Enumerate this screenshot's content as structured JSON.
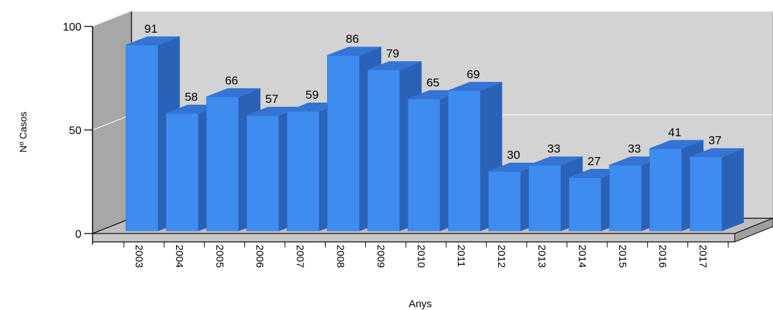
{
  "chart_data": {
    "type": "bar",
    "style": "3d",
    "categories": [
      "2003",
      "2004",
      "2005",
      "2006",
      "2007",
      "2008",
      "2009",
      "2010",
      "2011",
      "2012",
      "2013",
      "2014",
      "2015",
      "2016",
      "2017"
    ],
    "values": [
      91,
      58,
      66,
      57,
      59,
      86,
      79,
      65,
      69,
      30,
      33,
      27,
      33,
      41,
      37
    ],
    "data_labels": [
      "91",
      "58",
      "66",
      "57",
      "59",
      "86",
      "79",
      "65",
      "69",
      "30",
      "33",
      "27",
      "33",
      "41",
      "37"
    ],
    "xlabel": "Anys",
    "ylabel": "Nº Casos",
    "ylim": [
      0,
      100
    ],
    "yticks": [
      0,
      50,
      100
    ],
    "ytick_labels": [
      "0",
      "50",
      "100"
    ],
    "grid": true,
    "legend": "none",
    "colors": {
      "bar_front": "#3f8cf0",
      "bar_top": "#3574d4",
      "bar_side": "#2a62b8",
      "back_wall": "#d3d3d3",
      "side_wall": "#a7a7a7",
      "floor": "#bdbdbd"
    }
  }
}
